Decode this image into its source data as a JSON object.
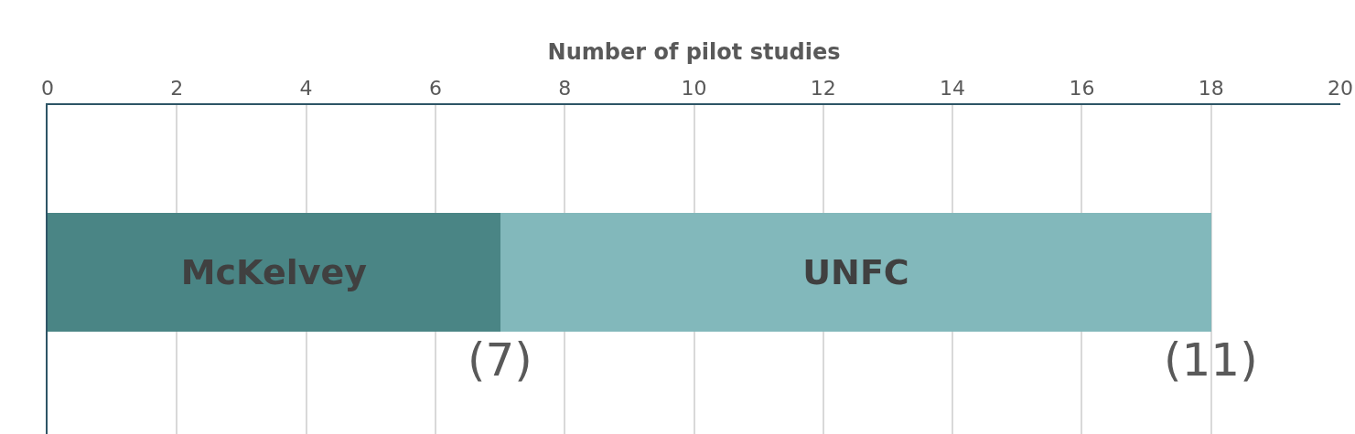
{
  "chart_data": {
    "type": "bar",
    "orientation": "horizontal",
    "stacked": true,
    "xlabel": "Number of pilot studies",
    "categories": [
      null
    ],
    "series": [
      {
        "name": "McKelvey",
        "color": "#4a8585",
        "values": [
          7
        ],
        "value_labels": [
          "(7)"
        ]
      },
      {
        "name": "UNFC",
        "color": "#82b8bb",
        "values": [
          11
        ],
        "value_labels": [
          "(11)"
        ]
      }
    ],
    "xlim": [
      0,
      20
    ],
    "xticks": [
      0,
      2,
      4,
      6,
      8,
      10,
      12,
      14,
      16,
      18,
      20
    ],
    "grid": "x",
    "legend": false,
    "tick_labels": "x"
  }
}
